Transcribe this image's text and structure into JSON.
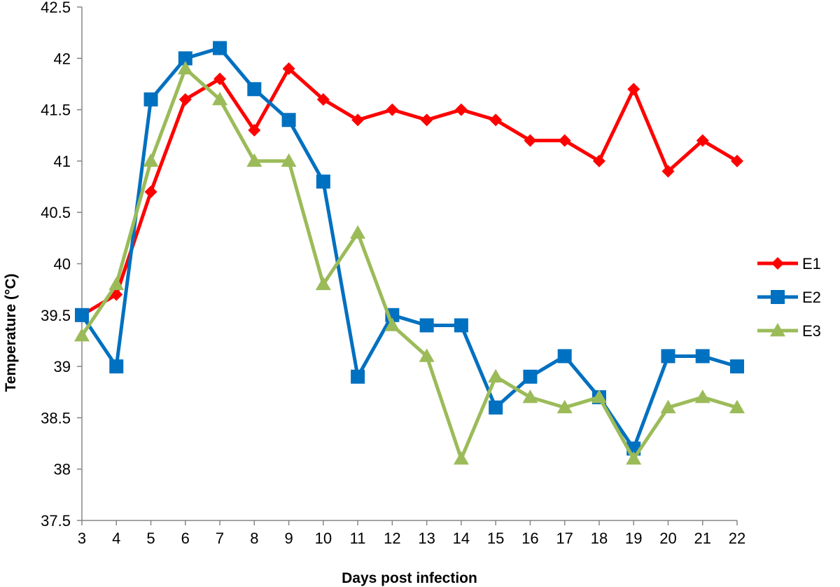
{
  "chart_data": {
    "type": "line",
    "title": "",
    "xlabel": "Days post infection",
    "ylabel": "Temperature (°C)",
    "x": [
      3,
      4,
      5,
      6,
      7,
      8,
      9,
      10,
      11,
      12,
      13,
      14,
      15,
      16,
      17,
      18,
      19,
      20,
      21,
      22
    ],
    "ylim": [
      37.5,
      42.5
    ],
    "yticks": [
      37.5,
      38,
      38.5,
      39,
      39.5,
      40,
      40.5,
      41,
      41.5,
      42,
      42.5
    ],
    "ytick_labels": [
      "37.5",
      "38",
      "38.5",
      "39",
      "39.5",
      "40",
      "40.5",
      "41",
      "41.5",
      "42",
      "42.5"
    ],
    "grid": false,
    "legend_position": "right",
    "series": [
      {
        "name": "E1",
        "color": "#ff0000",
        "marker": "diamond",
        "values": [
          39.5,
          39.7,
          40.7,
          41.6,
          41.8,
          41.3,
          41.9,
          41.6,
          41.4,
          41.5,
          41.4,
          41.5,
          41.4,
          41.2,
          41.2,
          41.0,
          41.7,
          40.9,
          41.2,
          41.0
        ]
      },
      {
        "name": "E2",
        "color": "#0070c0",
        "marker": "square",
        "values": [
          39.5,
          39.0,
          41.6,
          42.0,
          42.1,
          41.7,
          41.4,
          40.8,
          38.9,
          39.5,
          39.4,
          39.4,
          38.6,
          38.9,
          39.1,
          38.7,
          38.2,
          39.1,
          39.1,
          39.0
        ]
      },
      {
        "name": "E3",
        "color": "#9bbb59",
        "marker": "triangle",
        "values": [
          39.3,
          39.8,
          41.0,
          41.9,
          41.6,
          41.0,
          41.0,
          39.8,
          40.3,
          39.4,
          39.1,
          38.1,
          38.9,
          38.7,
          38.6,
          38.7,
          38.1,
          38.6,
          38.7,
          38.6
        ]
      }
    ]
  }
}
